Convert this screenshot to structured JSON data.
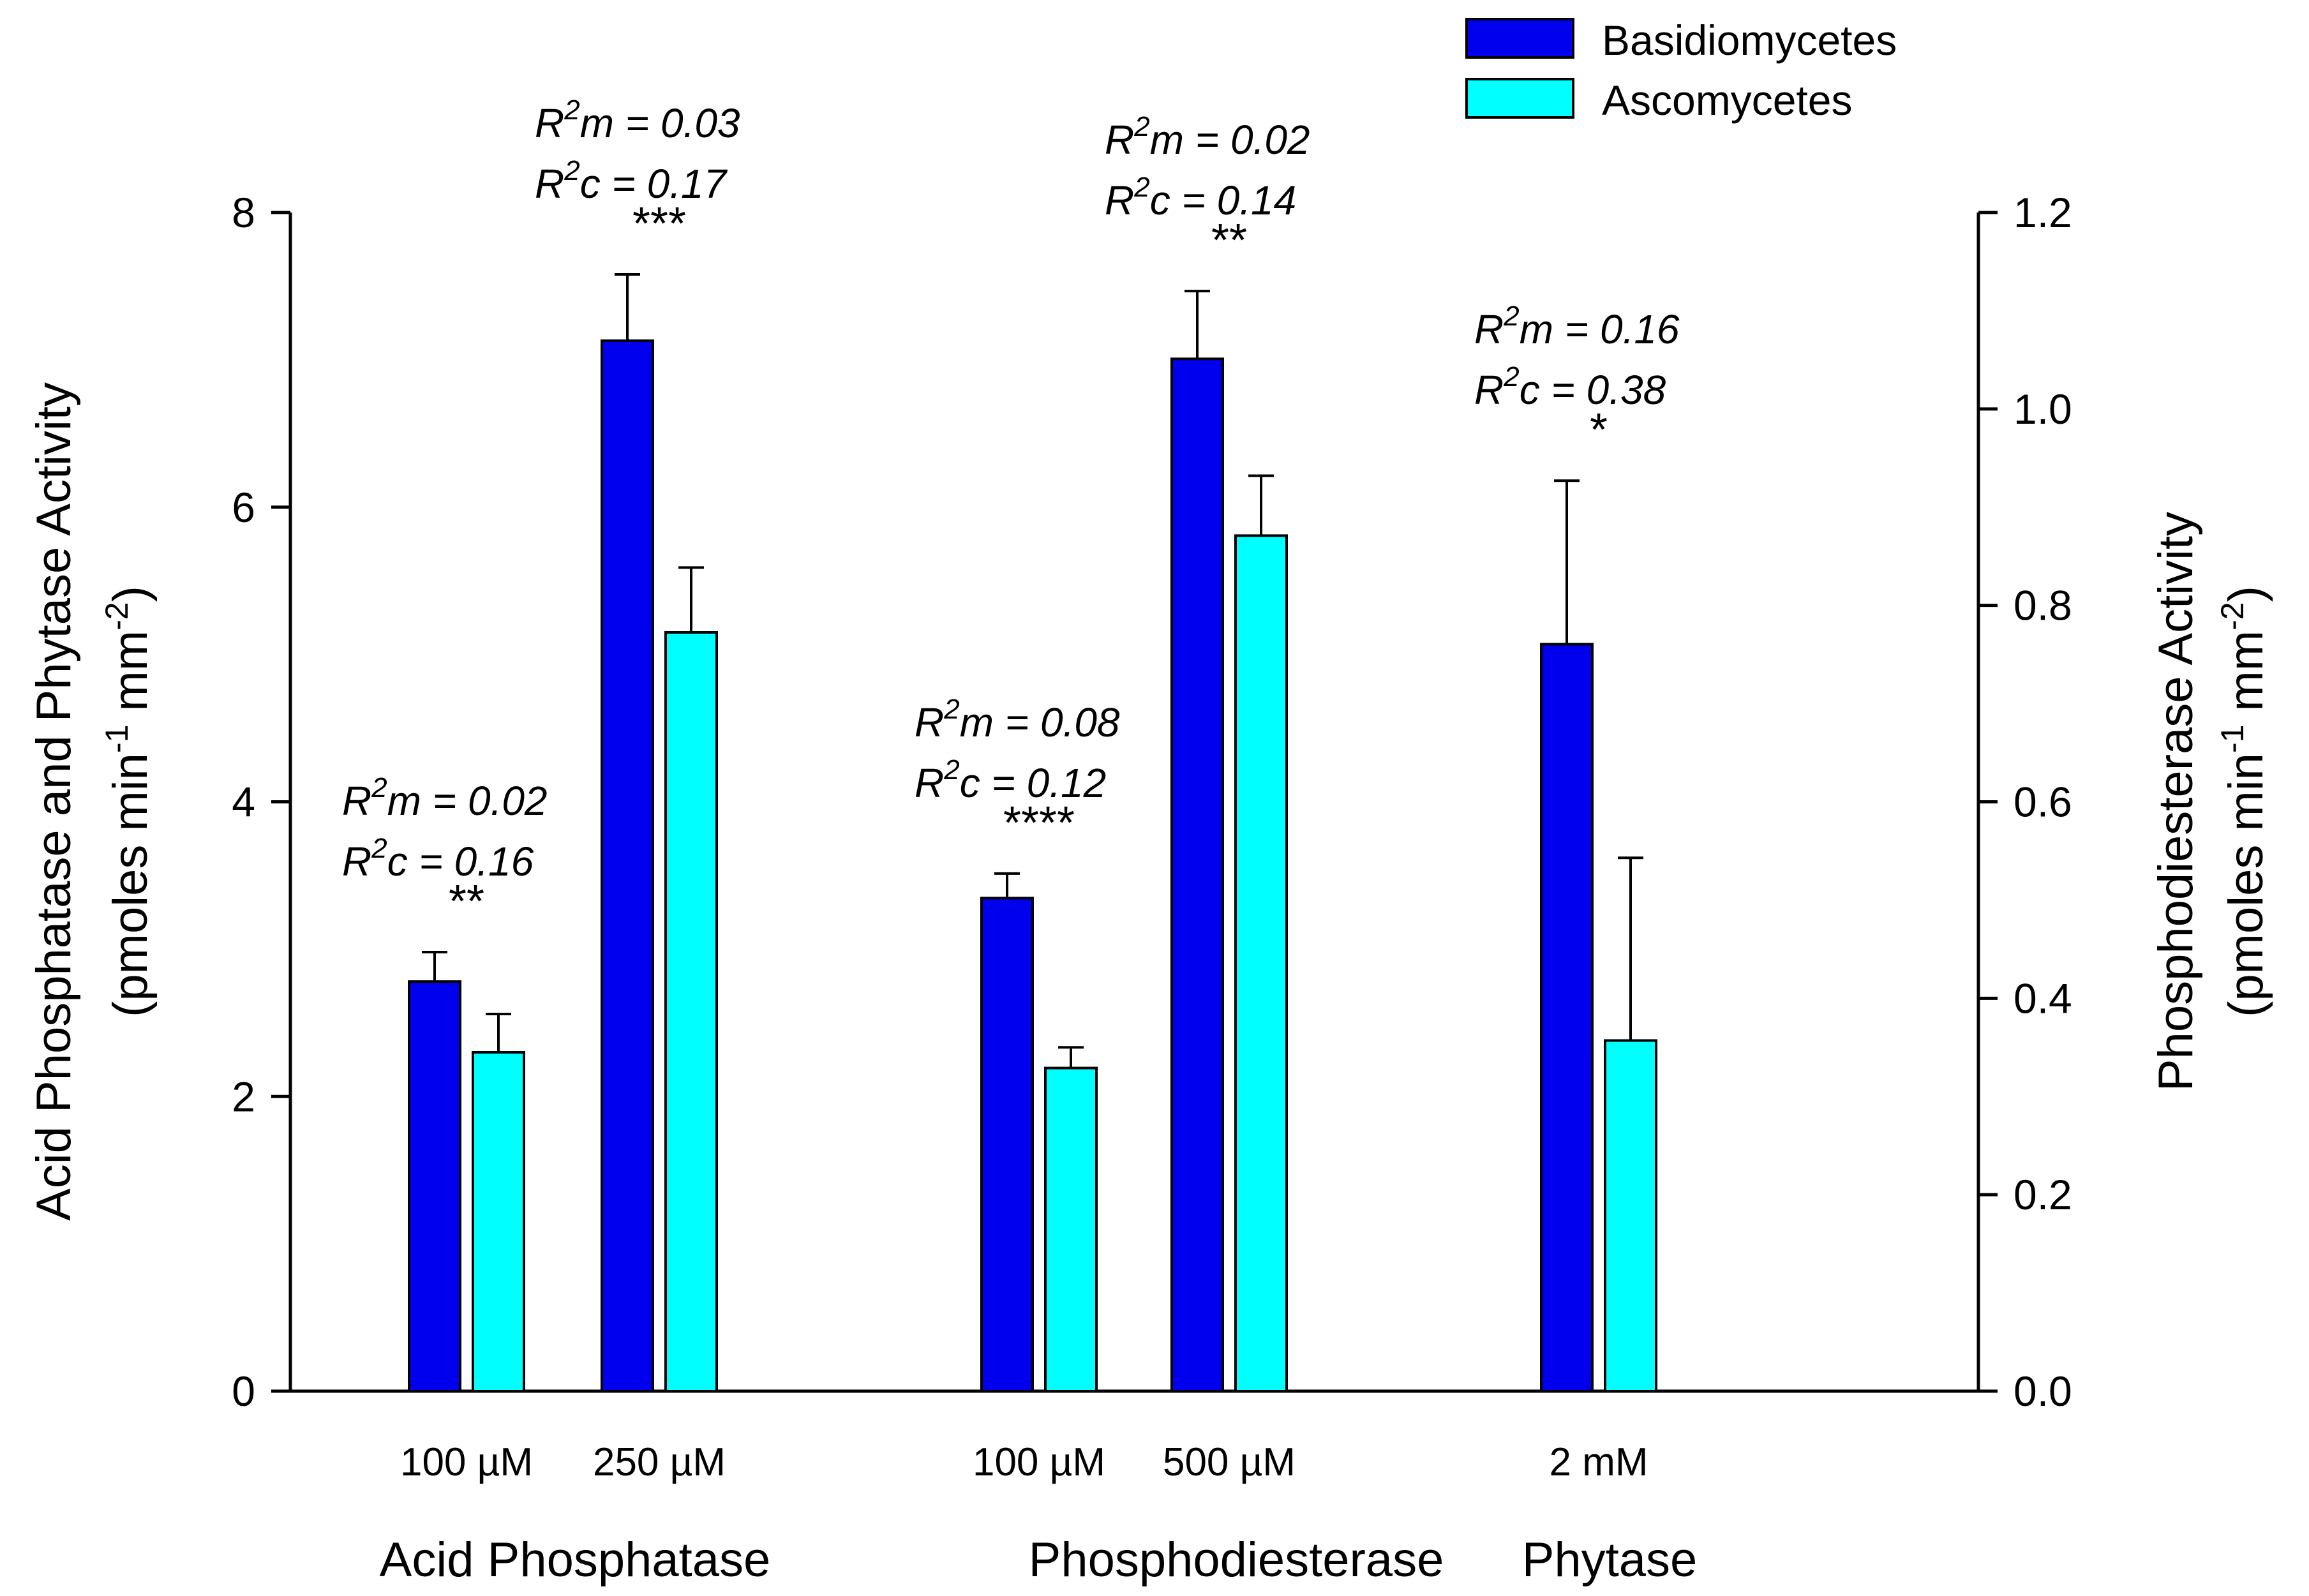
{
  "chart_data": {
    "type": "bar",
    "title": "",
    "ylabel_left": {
      "line1": "Acid Phosphatase and Phytase Activity",
      "line2": "(pmoles min",
      "sup1": "-1",
      "mid": " mm",
      "sup2": "-2",
      "end": ")"
    },
    "ylabel_right": {
      "line1": "Phosphodiesterase Activity",
      "line2": "(pmoles min",
      "sup1": "-1",
      "mid": " mm",
      "sup2": "-2",
      "end": ")"
    },
    "ylim_left": [
      0,
      8
    ],
    "ylim_right": [
      0,
      1.2
    ],
    "yticks_left": [
      "0",
      "2",
      "4",
      "6",
      "8"
    ],
    "yticks_right": [
      "0.0",
      "0.2",
      "0.4",
      "0.6",
      "0.8",
      "1.0",
      "1.2"
    ],
    "legend": {
      "placement": "top-right",
      "entries": [
        {
          "name": "Basidiomycetes",
          "color": "#0000EE"
        },
        {
          "name": "Ascomycetes",
          "color": "#00FFFF"
        }
      ]
    },
    "groups": [
      {
        "label": "Acid Phosphatase",
        "axis": "left"
      },
      {
        "label": "Phosphodiesterase",
        "axis": "right"
      },
      {
        "label": "Phytase",
        "axis": "left"
      }
    ],
    "conditions": [
      {
        "label": "100 µM",
        "group": 0,
        "axis": "left",
        "basidio": 2.78,
        "basidio_err": 0.2,
        "asco": 2.3,
        "asco_err": 0.26,
        "r2m": "0.02",
        "r2c": "0.16",
        "sig": "**"
      },
      {
        "label": "250 µM",
        "group": 0,
        "axis": "left",
        "basidio": 7.13,
        "basidio_err": 0.45,
        "asco": 5.15,
        "asco_err": 0.44,
        "r2m": "0.03",
        "r2c": "0.17",
        "sig": "***"
      },
      {
        "label": "100 µM",
        "group": 1,
        "axis": "right",
        "basidio": 0.502,
        "basidio_err": 0.025,
        "asco": 0.329,
        "asco_err": 0.021,
        "r2m": "0.08",
        "r2c": "0.12",
        "sig": "****"
      },
      {
        "label": "500 µM",
        "group": 1,
        "axis": "right",
        "basidio": 1.051,
        "basidio_err": 0.069,
        "asco": 0.871,
        "asco_err": 0.061,
        "r2m": "0.02",
        "r2c": "0.14",
        "sig": "**"
      },
      {
        "label": "2 mM",
        "group": 2,
        "axis": "left",
        "basidio": 5.07,
        "basidio_err": 1.11,
        "asco": 2.38,
        "asco_err": 1.24,
        "r2m": "0.16",
        "r2c": "0.38",
        "sig": "*"
      }
    ],
    "annotation_text": {
      "r": "R",
      "exp": "2",
      "m_suffix": "m = ",
      "c_suffix": "c = "
    }
  },
  "colors": {
    "basidio": "#0000EE",
    "asco": "#00FFFF",
    "axis": "#000000"
  }
}
